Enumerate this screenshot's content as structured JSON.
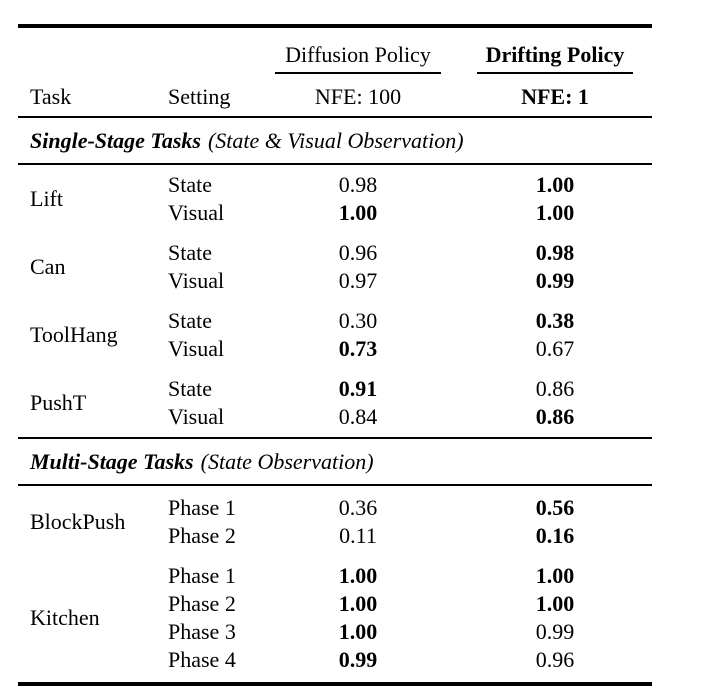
{
  "page": {
    "background_color": "#ffffff",
    "text_color": "#000000"
  },
  "table": {
    "header": {
      "task_label": "Task",
      "setting_label": "Setting",
      "diffusion": {
        "label": "Diffusion Policy",
        "sub": "NFE: 100",
        "weight": "normal"
      },
      "drifting": {
        "label": "Drifting Policy",
        "sub": "NFE: 1",
        "weight": "bold"
      }
    },
    "sections": [
      {
        "title": "Single-Stage Tasks",
        "subtitle": "(State & Visual Observation)",
        "groups": [
          {
            "task": "Lift",
            "rows": [
              {
                "setting": "State",
                "diffusion": "0.98",
                "diffusion_weight": "normal",
                "drifting": "1.00",
                "drifting_weight": "bold"
              },
              {
                "setting": "Visual",
                "diffusion": "1.00",
                "diffusion_weight": "bold",
                "drifting": "1.00",
                "drifting_weight": "bold"
              }
            ]
          },
          {
            "task": "Can",
            "rows": [
              {
                "setting": "State",
                "diffusion": "0.96",
                "diffusion_weight": "normal",
                "drifting": "0.98",
                "drifting_weight": "bold"
              },
              {
                "setting": "Visual",
                "diffusion": "0.97",
                "diffusion_weight": "normal",
                "drifting": "0.99",
                "drifting_weight": "bold"
              }
            ]
          },
          {
            "task": "ToolHang",
            "rows": [
              {
                "setting": "State",
                "diffusion": "0.30",
                "diffusion_weight": "normal",
                "drifting": "0.38",
                "drifting_weight": "bold"
              },
              {
                "setting": "Visual",
                "diffusion": "0.73",
                "diffusion_weight": "bold",
                "drifting": "0.67",
                "drifting_weight": "normal"
              }
            ]
          },
          {
            "task": "PushT",
            "rows": [
              {
                "setting": "State",
                "diffusion": "0.91",
                "diffusion_weight": "bold",
                "drifting": "0.86",
                "drifting_weight": "normal"
              },
              {
                "setting": "Visual",
                "diffusion": "0.84",
                "diffusion_weight": "normal",
                "drifting": "0.86",
                "drifting_weight": "bold"
              }
            ]
          }
        ]
      },
      {
        "title": "Multi-Stage Tasks",
        "subtitle": "(State Observation)",
        "groups": [
          {
            "task": "BlockPush",
            "rows": [
              {
                "setting": "Phase 1",
                "diffusion": "0.36",
                "diffusion_weight": "normal",
                "drifting": "0.56",
                "drifting_weight": "bold"
              },
              {
                "setting": "Phase 2",
                "diffusion": "0.11",
                "diffusion_weight": "normal",
                "drifting": "0.16",
                "drifting_weight": "bold"
              }
            ]
          },
          {
            "task": "Kitchen",
            "rows": [
              {
                "setting": "Phase 1",
                "diffusion": "1.00",
                "diffusion_weight": "bold",
                "drifting": "1.00",
                "drifting_weight": "bold"
              },
              {
                "setting": "Phase 2",
                "diffusion": "1.00",
                "diffusion_weight": "bold",
                "drifting": "1.00",
                "drifting_weight": "bold"
              },
              {
                "setting": "Phase 3",
                "diffusion": "1.00",
                "diffusion_weight": "bold",
                "drifting": "0.99",
                "drifting_weight": "normal"
              },
              {
                "setting": "Phase 4",
                "diffusion": "0.99",
                "diffusion_weight": "bold",
                "drifting": "0.96",
                "drifting_weight": "normal"
              }
            ]
          }
        ]
      }
    ]
  }
}
